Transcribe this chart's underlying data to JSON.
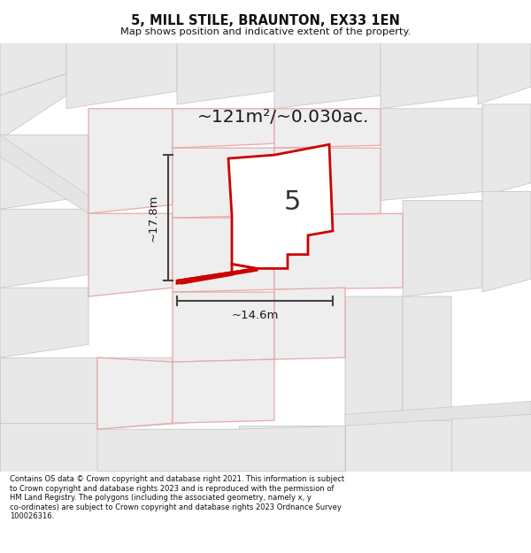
{
  "title": "5, MILL STILE, BRAUNTON, EX33 1EN",
  "subtitle": "Map shows position and indicative extent of the property.",
  "area_text": "~121m²/~0.030ac.",
  "number_label": "5",
  "dim_height": "~17.8m",
  "dim_width": "~14.6m",
  "footer": "Contains OS data © Crown copyright and database right 2021. This information is subject to Crown copyright and database rights 2023 and is reproduced with the permission of HM Land Registry. The polygons (including the associated geometry, namely x, y co-ordinates) are subject to Crown copyright and database rights 2023 Ordnance Survey 100026316.",
  "bg_color": "#f2f2f2",
  "plot_color": "#ffffff",
  "plot_edge_color": "#cc0000",
  "parcel_fill": "#e8e8e8",
  "parcel_edge_gray": "#c8c8c8",
  "parcel_edge_pink": "#e8a8a8",
  "dim_line_color": "#444444",
  "title_color": "#111111",
  "footer_color": "#111111",
  "figsize": [
    6.0,
    6.25
  ],
  "dpi": 100
}
